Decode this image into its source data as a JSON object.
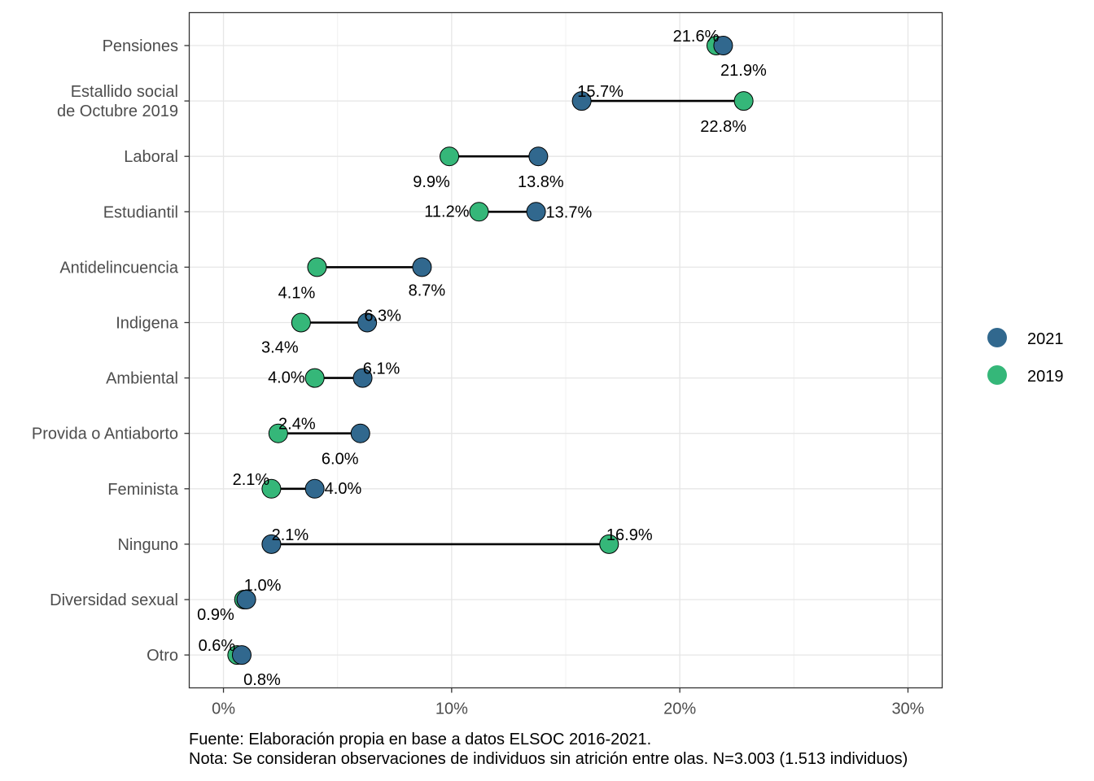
{
  "chart_data": {
    "type": "dumbbell",
    "categories": [
      "Pensiones",
      "Estallido social\nde Octubre 2019",
      "Laboral",
      "Estudiantil",
      "Antidelincuencia",
      "Indigena",
      "Ambiental",
      "Provida o Antiaborto",
      "Feminista",
      "Ninguno",
      "Diversidad sexual",
      "Otro"
    ],
    "series": [
      {
        "name": "2021",
        "color": "#31688e",
        "values": [
          21.9,
          15.7,
          13.8,
          13.7,
          8.7,
          6.3,
          6.1,
          6.0,
          4.0,
          2.1,
          1.0,
          0.8
        ],
        "labels": [
          "21.9%",
          "15.7%",
          "13.8%",
          "13.7%",
          "8.7%",
          "6.3%",
          "6.1%",
          "6.0%",
          "4.0%",
          "2.1%",
          "1.0%",
          "0.8%"
        ]
      },
      {
        "name": "2019",
        "color": "#35b779",
        "values": [
          21.6,
          22.8,
          9.9,
          11.2,
          4.1,
          3.4,
          4.0,
          2.4,
          2.1,
          16.9,
          0.9,
          0.6
        ],
        "labels": [
          "21.6%",
          "22.8%",
          "9.9%",
          "11.2%",
          "4.1%",
          "3.4%",
          "4.0%",
          "2.4%",
          "2.1%",
          "16.9%",
          "0.9%",
          "0.6%"
        ]
      }
    ],
    "x_ticks": [
      0,
      10,
      20,
      30
    ],
    "x_tick_labels": [
      "0%",
      "10%",
      "20%",
      "30%"
    ],
    "xlim": [
      -1.5,
      31.5
    ],
    "grid": true,
    "legend_position": "right",
    "caption_lines": [
      "Fuente: Elaboración propia en base a datos ELSOC 2016-2021.",
      "Nota: Se consideran observaciones de individuos sin atrición entre olas. N=3.003 (1.513 individuos)"
    ]
  }
}
